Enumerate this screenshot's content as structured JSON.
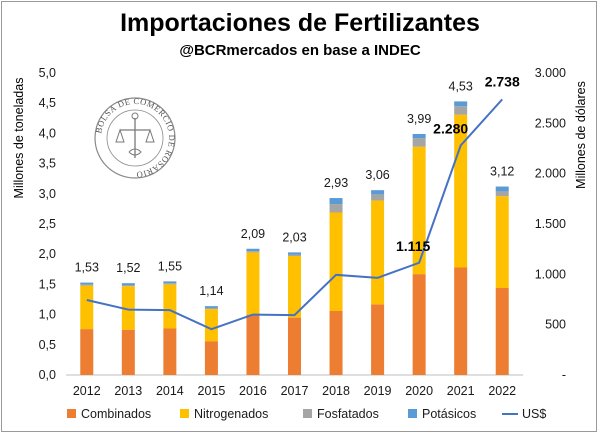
{
  "chart_data": {
    "type": "bar",
    "stacked": true,
    "title": "Importaciones de Fertilizantes",
    "subtitle": "@BCRmercados en base a INDEC",
    "ylabel": "Millones de toneladas",
    "y2label": "Millones de dólares",
    "ylim": [
      0,
      5
    ],
    "y2lim": [
      0,
      3000
    ],
    "yticks": [
      "0,0",
      "0,5",
      "1,0",
      "1,5",
      "2,0",
      "2,5",
      "3,0",
      "3,5",
      "4,0",
      "4,5",
      "5,0"
    ],
    "y2ticks": [
      "-",
      "500",
      "1.000",
      "1.500",
      "2.000",
      "2.500",
      "3.000"
    ],
    "categories": [
      "2012",
      "2013",
      "2014",
      "2015",
      "2016",
      "2017",
      "2018",
      "2019",
      "2020",
      "2021",
      "2022"
    ],
    "series": [
      {
        "name": "Combinados",
        "color": "#ED7D31",
        "values": [
          0.76,
          0.75,
          0.77,
          0.56,
          1.0,
          0.95,
          1.06,
          1.17,
          1.67,
          1.78,
          1.44
        ]
      },
      {
        "name": "Nitrogenados",
        "color": "#FFC000",
        "values": [
          0.72,
          0.72,
          0.73,
          0.53,
          1.03,
          1.02,
          1.63,
          1.72,
          2.11,
          2.53,
          1.52
        ]
      },
      {
        "name": "Fosfatados",
        "color": "#A5A5A5",
        "values": [
          0.02,
          0.02,
          0.02,
          0.02,
          0.02,
          0.02,
          0.14,
          0.1,
          0.14,
          0.14,
          0.08
        ]
      },
      {
        "name": "Potásicos",
        "color": "#5B9BD5",
        "values": [
          0.03,
          0.03,
          0.03,
          0.03,
          0.04,
          0.04,
          0.1,
          0.07,
          0.07,
          0.08,
          0.08
        ]
      }
    ],
    "totals": [
      "1,53",
      "1,52",
      "1,55",
      "1,14",
      "2,09",
      "2,03",
      "2,93",
      "3,06",
      "3,99",
      "4,53",
      "3,12"
    ],
    "line": {
      "name": "US$",
      "color": "#4472C4",
      "axis": "right",
      "values": [
        745,
        650,
        645,
        455,
        600,
        595,
        995,
        965,
        1115,
        2280,
        2738
      ],
      "labels": [
        {
          "index": 8,
          "text": "1.115"
        },
        {
          "index": 9,
          "text": "2.280"
        },
        {
          "index": 10,
          "text": "2.738"
        }
      ]
    },
    "legend_position": "bottom",
    "grid": false
  },
  "watermark": {
    "seal_text": "BOLSA DE COMERCIO DE ROSARIO"
  }
}
